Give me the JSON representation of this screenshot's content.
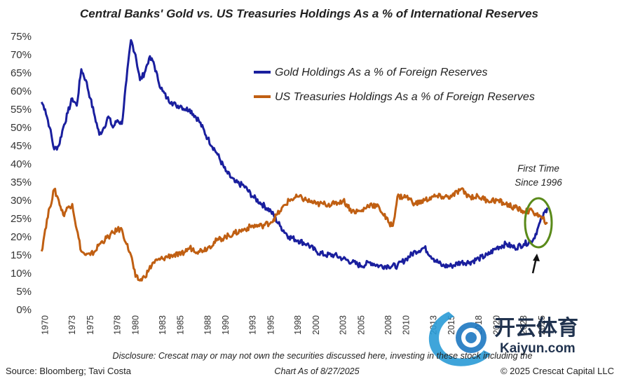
{
  "chart_data": {
    "type": "line",
    "title": "Central Banks' Gold vs. US Treasuries Holdings As a % of International Reserves",
    "ylabel": "",
    "xlabel": "",
    "ylim": [
      0,
      75
    ],
    "xlim": [
      1969.5,
      2025.7
    ],
    "y_ticks": [
      "0%",
      "5%",
      "10%",
      "15%",
      "20%",
      "25%",
      "30%",
      "35%",
      "40%",
      "45%",
      "50%",
      "55%",
      "60%",
      "65%",
      "70%",
      "75%"
    ],
    "x_ticks": [
      "1970",
      "1973",
      "1975",
      "1978",
      "1980",
      "1983",
      "1985",
      "1988",
      "1990",
      "1993",
      "1995",
      "1998",
      "2000",
      "2003",
      "2005",
      "2008",
      "2010",
      "2013",
      "2015",
      "2018",
      "2020",
      "2023",
      "2025"
    ],
    "series": [
      {
        "name": "Gold Holdings As a % of Foreign Reserves",
        "color": "#1a1f9e",
        "x": [
          1969.6,
          1970.0,
          1970.5,
          1971.0,
          1971.5,
          1972.0,
          1972.5,
          1973.0,
          1973.5,
          1974.0,
          1974.5,
          1975.0,
          1975.5,
          1976.0,
          1976.5,
          1977.0,
          1977.5,
          1978.0,
          1978.5,
          1979.0,
          1979.5,
          1980.0,
          1980.5,
          1981.0,
          1981.5,
          1982.0,
          1982.5,
          1983.0,
          1983.5,
          1984.0,
          1984.5,
          1985.0,
          1985.5,
          1986.0,
          1987.0,
          1988.0,
          1989.0,
          1990.0,
          1991.0,
          1992.0,
          1993.0,
          1994.0,
          1995.0,
          1996.0,
          1997.0,
          1998.0,
          1999.0,
          2000.0,
          2001.0,
          2002.0,
          2003.0,
          2004.0,
          2005.0,
          2006.0,
          2007.0,
          2008.0,
          2009.0,
          2010.0,
          2011.0,
          2012.0,
          2013.0,
          2014.0,
          2015.0,
          2016.0,
          2017.0,
          2018.0,
          2019.0,
          2020.0,
          2021.0,
          2022.0,
          2023.0,
          2024.0,
          2024.5,
          2025.0,
          2025.6
        ],
        "values": [
          57,
          55,
          50,
          44,
          45,
          50,
          54,
          58,
          56,
          66,
          63,
          58,
          53,
          48,
          50,
          53,
          50,
          52,
          51,
          63,
          74,
          70,
          63,
          65,
          69,
          68,
          63,
          60,
          58,
          57,
          56,
          56,
          55,
          55,
          52,
          47,
          43,
          38,
          35,
          34,
          31,
          29,
          27,
          23,
          20,
          19,
          18,
          16,
          15,
          15,
          14,
          13,
          12,
          13,
          12,
          12,
          12,
          14,
          16,
          17,
          14,
          12,
          12,
          13,
          13,
          14,
          15,
          17,
          18,
          17,
          18,
          19,
          22,
          25,
          28
        ]
      },
      {
        "name": "US Treasuries Holdings As a % of Foreign Reserves",
        "color": "#c05f12",
        "x": [
          1969.6,
          1970.0,
          1970.5,
          1971.0,
          1971.5,
          1972.0,
          1972.5,
          1973.0,
          1973.5,
          1974.0,
          1974.5,
          1975.0,
          1975.5,
          1976.0,
          1977.0,
          1978.0,
          1978.5,
          1979.0,
          1979.5,
          1980.0,
          1980.5,
          1981.0,
          1981.5,
          1982.0,
          1983.0,
          1984.0,
          1985.0,
          1986.0,
          1987.0,
          1988.0,
          1989.0,
          1990.0,
          1991.0,
          1992.0,
          1993.0,
          1994.0,
          1995.0,
          1996.0,
          1997.0,
          1998.0,
          1999.0,
          2000.0,
          2001.0,
          2002.0,
          2003.0,
          2004.0,
          2005.0,
          2006.0,
          2007.0,
          2008.0,
          2008.5,
          2009.0,
          2010.0,
          2011.0,
          2012.0,
          2013.0,
          2014.0,
          2015.0,
          2016.0,
          2017.0,
          2018.0,
          2019.0,
          2020.0,
          2021.0,
          2022.0,
          2023.0,
          2024.0,
          2025.0,
          2025.6
        ],
        "values": [
          16,
          22,
          28,
          33,
          30,
          26,
          28,
          29,
          22,
          16,
          15,
          15,
          16,
          18,
          20,
          22,
          22,
          18,
          15,
          9,
          8,
          9,
          11,
          13,
          14,
          15,
          15,
          17,
          16,
          17,
          19,
          20,
          21,
          22,
          23,
          23,
          24,
          27,
          30,
          31,
          30,
          29,
          29,
          29,
          30,
          27,
          27,
          29,
          28,
          24,
          23,
          31,
          31,
          29,
          30,
          31,
          31,
          31,
          33,
          31,
          31,
          30,
          30,
          29,
          28,
          27,
          27,
          25,
          24
        ]
      }
    ],
    "legend": "top-right",
    "grid": false,
    "annotations": [
      "First Time",
      "Since 1996"
    ]
  },
  "footer": {
    "disclosure": "Disclosure: Crescat may or may not own the securities discussed here, investing in these stock including the",
    "source": "Source: Bloomberg; Tavi Costa",
    "chart_as_of": "Chart As of 8/27/2025",
    "copyright": "© 2025 Crescat Capital LLC"
  },
  "watermark": {
    "brand": "开云体育",
    "url": "Kaiyun.com"
  },
  "colors": {
    "gold_line": "#1a1f9e",
    "treasury_line": "#c05f12",
    "highlight_ellipse": "#5a8a1a",
    "watermark": "#0a1e3c"
  }
}
